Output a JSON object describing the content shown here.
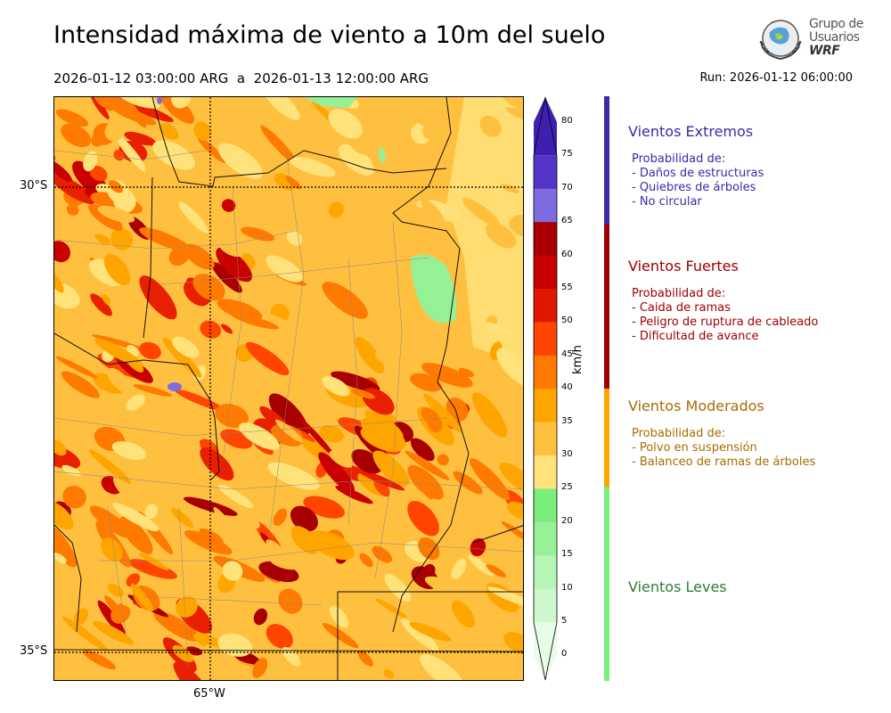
{
  "header": {
    "title": "Intensidad máxima de viento a 10m del suelo",
    "period": "2026-01-12 03:00:00 ARG  a  2026-01-13 12:00:00 ARG",
    "run": "Run: 2026-01-12 06:00:00"
  },
  "logo": {
    "line1": "Grupo de",
    "line2": "Usuarios",
    "line3": "WRF"
  },
  "map": {
    "lat_labels": [
      "30°S",
      "35°S"
    ],
    "lon_labels": [
      "65°W"
    ],
    "fill_colors": [
      "#ffe27a",
      "#ffc040",
      "#ffa500",
      "#ff7a00",
      "#ff4500",
      "#e82000",
      "#c80000",
      "#a80000"
    ]
  },
  "colorbar": {
    "unit": "km/h",
    "ticks": [
      "80",
      "75",
      "70",
      "65",
      "60",
      "55",
      "50",
      "45",
      "40",
      "35",
      "30",
      "25",
      "20",
      "15",
      "10",
      "5",
      "0"
    ],
    "colors": [
      "#3f1fb0",
      "#5535c8",
      "#7e6de0",
      "#a80000",
      "#c80000",
      "#e01800",
      "#ff4500",
      "#ff7a00",
      "#ffa500",
      "#ffc040",
      "#ffe27a",
      "#7aee7a",
      "#96f096",
      "#b5f5b5",
      "#cdf8cd",
      "#e8fde8"
    ]
  },
  "categories": [
    {
      "name": "Vientos Extremos",
      "color": "#3a2aa8",
      "bar_color": "#3a2aa8",
      "desc_title": "Probabilidad de:",
      "items": [
        "- Daños de estructuras",
        "- Quiebres de árboles",
        "- No circular"
      ]
    },
    {
      "name": "Vientos Fuertes",
      "color": "#a00000",
      "bar_color": "#a00000",
      "desc_title": "Probabilidad de:",
      "items": [
        "- Caida de ramas",
        "- Peligro de ruptura de cableado",
        "- Dificultad de avance"
      ]
    },
    {
      "name": "Vientos Moderados",
      "color": "#a86c00",
      "bar_color": "#ffa500",
      "desc_title": "Probabilidad de:",
      "items": [
        "- Polvo en suspensión",
        "- Balanceo de ramas de árboles"
      ]
    },
    {
      "name": "Vientos Leves",
      "color": "#2e7d32",
      "bar_color": "#7aee7a",
      "desc_title": "",
      "items": []
    }
  ]
}
